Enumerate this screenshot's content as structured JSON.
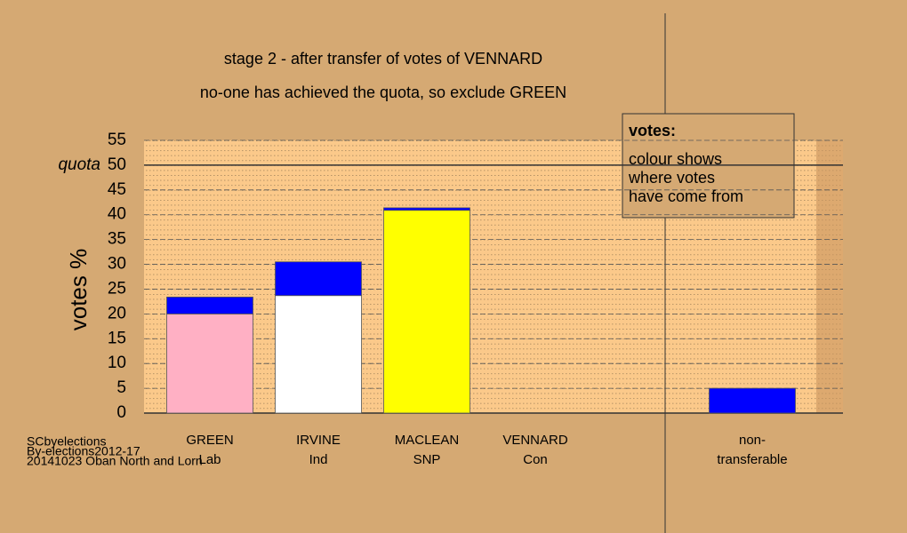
{
  "chart_data": {
    "type": "bar",
    "stacked": true,
    "title": "stage 2 - after transfer of votes of VENNARD",
    "subtitle": "no-one has achieved the quota, so exclude GREEN",
    "y_label": "votes %",
    "categories": [
      "GREEN",
      "IRVINE",
      "MACLEAN",
      "VENNARD",
      null,
      "non-"
    ],
    "parties": [
      "Lab",
      "Ind",
      "SNP",
      "Con",
      null,
      "transferable"
    ],
    "series": [
      {
        "colors": [
          "#ffb0c4",
          "#ffffff",
          "#ffff00",
          "#ffffff",
          null,
          "#0000ff"
        ],
        "values": [
          20.0,
          23.7,
          40.9,
          0,
          null,
          0
        ]
      },
      {
        "color": "#0000ff",
        "values": [
          3.4,
          6.8,
          0.5,
          0,
          null,
          5.0
        ]
      }
    ],
    "ylim": [
      0,
      55
    ],
    "yticks": [
      0,
      5,
      10,
      15,
      20,
      25,
      30,
      35,
      40,
      45,
      50,
      55
    ],
    "quota": 50,
    "quota_label": "quota",
    "grid": true,
    "note_title": "votes:",
    "note_lines": [
      "colour shows",
      "where votes",
      "have come from"
    ],
    "footer": [
      "SCbyelections",
      "By-elections2012-17",
      "20141023 Oban North and Lorn"
    ]
  }
}
